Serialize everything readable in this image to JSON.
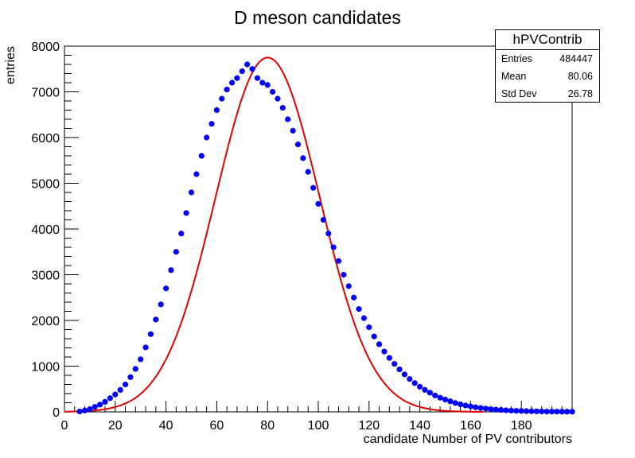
{
  "chart_data": {
    "type": "scatter",
    "title": "D meson candidates",
    "xlabel": "candidate Number of PV contributors",
    "ylabel": "entries",
    "xlim": [
      0,
      200
    ],
    "ylim": [
      0,
      8000
    ],
    "x_ticks": [
      0,
      20,
      40,
      60,
      80,
      100,
      120,
      140,
      160,
      180
    ],
    "y_ticks": [
      0,
      1000,
      2000,
      3000,
      4000,
      5000,
      6000,
      7000,
      8000
    ],
    "grid": false,
    "colors": {
      "points": "#0000ff",
      "fit": "#e00000"
    },
    "series": [
      {
        "style": "markers",
        "x": [
          6,
          8,
          10,
          12,
          14,
          16,
          18,
          20,
          22,
          24,
          26,
          28,
          30,
          32,
          34,
          36,
          38,
          40,
          42,
          44,
          46,
          48,
          50,
          52,
          54,
          56,
          58,
          60,
          62,
          64,
          66,
          68,
          70,
          72,
          74,
          76,
          78,
          80,
          82,
          84,
          86,
          88,
          90,
          92,
          94,
          96,
          98,
          100,
          102,
          104,
          106,
          108,
          110,
          112,
          114,
          116,
          118,
          120,
          122,
          124,
          126,
          128,
          130,
          132,
          134,
          136,
          138,
          140,
          142,
          144,
          146,
          148,
          150,
          152,
          154,
          156,
          158,
          160,
          162,
          164,
          166,
          168,
          170,
          172,
          174,
          176,
          178,
          180,
          182,
          184,
          186,
          188,
          190,
          192,
          194,
          196,
          198,
          200
        ],
        "y": [
          10,
          30,
          60,
          110,
          160,
          220,
          300,
          380,
          480,
          600,
          760,
          940,
          1150,
          1410,
          1700,
          2020,
          2350,
          2700,
          3100,
          3500,
          3900,
          4350,
          4800,
          5200,
          5600,
          6000,
          6300,
          6600,
          6850,
          7050,
          7200,
          7300,
          7450,
          7600,
          7500,
          7300,
          7200,
          7150,
          7000,
          6850,
          6650,
          6400,
          6150,
          5850,
          5550,
          5250,
          4900,
          4550,
          4200,
          3900,
          3600,
          3300,
          3000,
          2750,
          2500,
          2250,
          2050,
          1850,
          1650,
          1480,
          1320,
          1180,
          1050,
          930,
          820,
          720,
          630,
          550,
          480,
          420,
          360,
          310,
          270,
          230,
          195,
          165,
          140,
          120,
          100,
          85,
          72,
          60,
          50,
          42,
          35,
          29,
          24,
          20,
          17,
          14,
          12,
          10,
          8,
          7,
          6,
          5,
          4,
          4
        ]
      },
      {
        "style": "line",
        "fit": "gaussian",
        "amplitude": 7750,
        "mean": 80.06,
        "sigma": 20.5,
        "x_range": [
          0,
          165
        ]
      }
    ]
  },
  "stats": {
    "name": "hPVContrib",
    "rows": [
      {
        "label": "Entries",
        "value": "484447"
      },
      {
        "label": "Mean",
        "value": "80.06"
      },
      {
        "label": "Std Dev",
        "value": "26.78"
      }
    ]
  }
}
